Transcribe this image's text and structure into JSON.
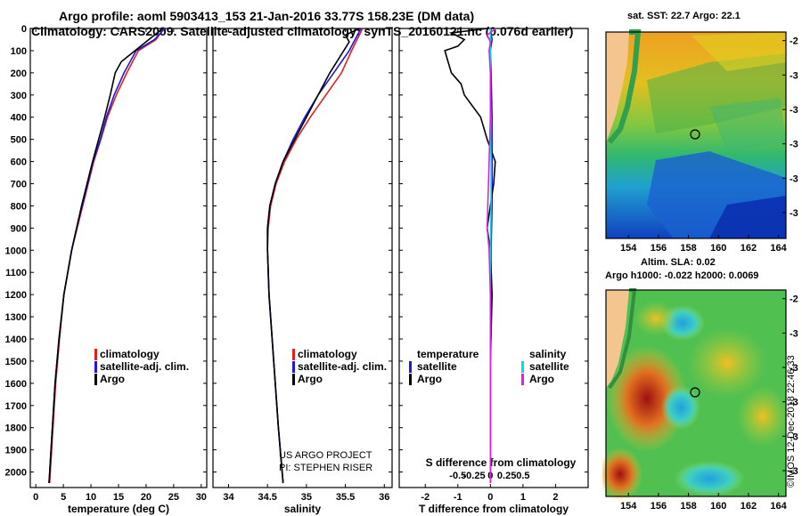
{
  "header": {
    "line1": "Argo profile: aoml 5903413_153 21-Jan-2016 33.77S 158.23E (DM data)",
    "line2": "Climatology: CARS2009. Satellite-adjusted climatology: synTS_20160121.nc (0.076d earlier)"
  },
  "colors": {
    "climatology": "#e0201b",
    "satellite": "#1a1ae0",
    "argo": "#000000",
    "sat_salinity": "#00e0e0",
    "argo_salinity": "#e020e0"
  },
  "chart_data": [
    {
      "type": "line",
      "title": "",
      "xlabel": "temperature (deg C)",
      "ylabel": "",
      "xlim": [
        -1,
        31
      ],
      "ylim": [
        2070,
        0
      ],
      "xticks": [
        "0",
        "5",
        "10",
        "15",
        "20",
        "25",
        "30"
      ],
      "yticks": [
        "0",
        "100",
        "200",
        "300",
        "400",
        "500",
        "600",
        "700",
        "800",
        "900",
        "1000",
        "1100",
        "1200",
        "1300",
        "1400",
        "1500",
        "1600",
        "1700",
        "1800",
        "1900",
        "2000"
      ],
      "legend": [
        "climatology",
        "satellite-adj. clim.",
        "Argo"
      ],
      "series": [
        {
          "name": "climatology",
          "depth": [
            0,
            50,
            100,
            200,
            300,
            400,
            500,
            600,
            700,
            800,
            900,
            1000,
            1200,
            1400,
            1600,
            2050
          ],
          "values": [
            23.2,
            21.8,
            18.6,
            16.5,
            14.6,
            13.0,
            11.8,
            10.5,
            9.5,
            8.5,
            7.5,
            6.5,
            5.1,
            4.3,
            3.6,
            2.5
          ]
        },
        {
          "name": "satellite-adj. clim.",
          "depth": [
            0,
            50,
            100,
            200,
            300,
            400,
            500,
            600,
            700,
            800,
            900,
            1000,
            1200,
            1400,
            1600,
            2050
          ],
          "values": [
            23.4,
            21.5,
            18.2,
            16.0,
            14.2,
            12.8,
            11.7,
            10.4,
            9.4,
            8.4,
            7.4,
            6.5,
            5.1,
            4.2,
            3.5,
            2.4
          ]
        },
        {
          "name": "Argo",
          "depth": [
            0,
            50,
            100,
            150,
            200,
            300,
            400,
            500,
            600,
            700,
            800,
            900,
            1000,
            1200,
            1400,
            1600,
            2050
          ],
          "values": [
            23.0,
            20.5,
            18.0,
            15.5,
            14.4,
            13.5,
            12.5,
            11.4,
            10.3,
            9.3,
            8.3,
            7.4,
            6.5,
            5.1,
            4.2,
            3.5,
            2.4
          ]
        }
      ]
    },
    {
      "type": "line",
      "title": "",
      "xlabel": "salinity",
      "ylabel": "",
      "xlim": [
        33.8,
        36.1
      ],
      "ylim": [
        2070,
        0
      ],
      "xticks": [
        "34",
        "34.5",
        "35",
        "35.5",
        "36"
      ],
      "legend": [
        "climatology",
        "satellite-adj. clim.",
        "Argo"
      ],
      "series": [
        {
          "name": "climatology",
          "depth": [
            0,
            100,
            200,
            300,
            400,
            500,
            600,
            700,
            800,
            900,
            1000,
            1200,
            1400,
            1600,
            1800,
            2050
          ],
          "values": [
            35.72,
            35.58,
            35.45,
            35.25,
            35.05,
            34.87,
            34.72,
            34.61,
            34.54,
            34.51,
            34.5,
            34.52,
            34.56,
            34.6,
            34.64,
            34.7
          ]
        },
        {
          "name": "satellite-adj. clim.",
          "depth": [
            0,
            100,
            200,
            300,
            400,
            500,
            600,
            700,
            800,
            900,
            1000,
            1200,
            1400,
            1600,
            1800,
            2050
          ],
          "values": [
            35.7,
            35.55,
            35.35,
            35.15,
            34.98,
            34.83,
            34.7,
            34.6,
            34.53,
            34.5,
            34.5,
            34.52,
            34.56,
            34.6,
            34.64,
            34.7
          ]
        },
        {
          "name": "Argo",
          "depth": [
            0,
            30,
            60,
            100,
            200,
            300,
            400,
            500,
            600,
            700,
            800,
            900,
            1000,
            1200,
            1400,
            1600,
            1800,
            2050
          ],
          "values": [
            35.68,
            35.5,
            35.55,
            35.48,
            35.3,
            35.15,
            35.0,
            34.85,
            34.7,
            34.6,
            34.53,
            34.5,
            34.5,
            34.52,
            34.56,
            34.6,
            34.64,
            34.7
          ]
        }
      ]
    },
    {
      "type": "line",
      "title": "",
      "xlabel": "T difference from climatology",
      "xlabel_top": "S difference from climatology",
      "ylabel": "",
      "xlim": [
        -2.8,
        3.0
      ],
      "ylim": [
        2070,
        0
      ],
      "xticks": [
        "-2",
        "-1",
        "0",
        "1",
        "2"
      ],
      "xticks_top": [
        "-0.5",
        "-0.25",
        "0",
        "0.25",
        "0.5"
      ],
      "legend": [
        "temperature",
        "satellite",
        "Argo",
        "salinity",
        "satellite",
        "Argo"
      ],
      "series": [
        {
          "name": "T satellite",
          "depth": [
            0,
            50,
            100,
            200,
            400,
            600,
            800,
            1000,
            1500,
            2050
          ],
          "values": [
            0.0,
            0.05,
            0.0,
            0.02,
            0.05,
            0.05,
            0.05,
            0.02,
            0.0,
            0.0
          ]
        },
        {
          "name": "T Argo",
          "depth": [
            0,
            20,
            50,
            80,
            100,
            150,
            200,
            250,
            300,
            400,
            500,
            600,
            700,
            800,
            900,
            1000,
            1200,
            1500,
            2050
          ],
          "values": [
            -0.1,
            -1.2,
            -0.8,
            -1.0,
            -1.4,
            -1.3,
            -1.2,
            -0.9,
            -0.8,
            -0.3,
            -0.1,
            0.15,
            0.1,
            0.0,
            -0.1,
            0.0,
            0.05,
            0.0,
            0.0
          ]
        },
        {
          "name": "S satellite",
          "depth": [
            0,
            50,
            100,
            200,
            400,
            600,
            800,
            1000,
            1500,
            2050
          ],
          "values": [
            0.0,
            0.0,
            0.0,
            0.0,
            0.0,
            0.01,
            0.01,
            0.0,
            0.0,
            0.0
          ]
        },
        {
          "name": "S Argo",
          "depth": [
            0,
            30,
            60,
            100,
            200,
            400,
            600,
            800,
            900,
            1000,
            1200,
            1500,
            2050
          ],
          "values": [
            0.08,
            -0.05,
            0.0,
            -0.02,
            0.0,
            0.0,
            -0.02,
            -0.04,
            -0.05,
            -0.02,
            0.0,
            0.0,
            0.0
          ]
        }
      ]
    }
  ],
  "legend_left": {
    "items": [
      "climatology",
      "satellite-adj. clim.",
      "Argo"
    ]
  },
  "legend_mid": {
    "items": [
      "climatology",
      "satellite-adj. clim.",
      "Argo"
    ]
  },
  "legend_diff": {
    "left_title": "temperature",
    "left_items": [
      "satellite",
      "Argo"
    ],
    "right_title": "salinity",
    "right_items": [
      "satellite",
      "Argo"
    ]
  },
  "credits": {
    "line1": "US ARGO PROJECT",
    "line2": "PI: STEPHEN RISER"
  },
  "map_top": {
    "title": "sat. SST: 22.7 Argo: 22.1",
    "xticks": [
      "154",
      "156",
      "158",
      "160",
      "162",
      "164"
    ],
    "yticks": [
      "-28",
      "-30",
      "-32",
      "-34",
      "-36",
      "-38"
    ]
  },
  "map_bottom": {
    "title1": "Altim. SLA: 0.02",
    "title2": "Argo h1000: -0.022 h2000: 0.0069",
    "xticks": [
      "154",
      "156",
      "158",
      "160",
      "162",
      "164"
    ],
    "yticks": [
      "-28",
      "-30",
      "-32",
      "-34",
      "-36",
      "-38"
    ]
  },
  "stamp": "©IMOS 12-Dec-2018 22:46:33"
}
